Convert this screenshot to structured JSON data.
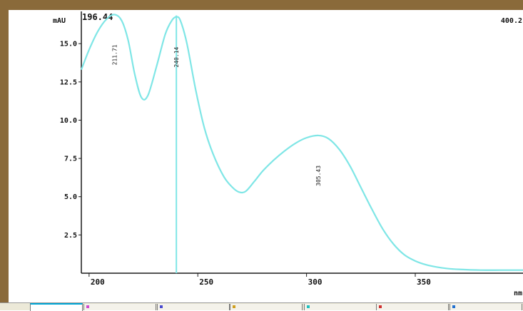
{
  "colors": {
    "trace": "#7fe6e6",
    "axis": "#1a1a1a",
    "frame": "#8a6a3a",
    "background": "#ffffff"
  },
  "header": {
    "unit_label": "mAU",
    "left_wavelength": "196.44",
    "right_wavelength": "400.2"
  },
  "chart_data": {
    "type": "line",
    "title": "",
    "xlabel": "nm",
    "ylabel": "mAU",
    "xlim": [
      196.44,
      400.2
    ],
    "ylim": [
      0,
      17.2
    ],
    "grid": false,
    "x_ticks": [
      200,
      250,
      300,
      350
    ],
    "x_tick_labels": [
      "200",
      "250",
      "300",
      "350"
    ],
    "y_ticks": [
      2.5,
      5.0,
      7.5,
      10.0,
      12.5,
      15.0
    ],
    "y_tick_labels": [
      "2.5",
      "5.0",
      "7.5",
      "10.0",
      "12.5",
      "15.0"
    ],
    "series": [
      {
        "x": [
          196.44,
          200,
          204,
          208,
          211.71,
          215,
          218,
          221,
          224,
          227,
          231,
          235,
          238,
          240.14,
          242,
          245,
          249,
          253,
          257,
          262,
          266,
          269,
          272,
          276,
          280,
          285,
          290,
          295,
          300,
          305.43,
          310,
          315,
          320,
          325,
          330,
          335,
          340,
          345,
          350,
          355,
          360,
          365,
          370,
          380,
          390,
          400.2
        ],
        "y": [
          13.3,
          14.6,
          15.8,
          16.6,
          16.9,
          16.5,
          15.2,
          13.0,
          11.5,
          11.6,
          13.5,
          15.6,
          16.5,
          16.75,
          16.5,
          15.0,
          12.0,
          9.5,
          7.8,
          6.3,
          5.6,
          5.3,
          5.35,
          6.0,
          6.7,
          7.4,
          8.0,
          8.5,
          8.85,
          9.0,
          8.8,
          8.1,
          7.0,
          5.6,
          4.2,
          2.9,
          1.9,
          1.2,
          0.8,
          0.55,
          0.4,
          0.3,
          0.25,
          0.2,
          0.2,
          0.2
        ]
      }
    ],
    "peak_labels": [
      {
        "x": 211.71,
        "y": 16.9,
        "text": "211.71"
      },
      {
        "x": 240.14,
        "y": 16.75,
        "text": "240.14"
      },
      {
        "x": 305.43,
        "y": 9.0,
        "text": "305.43"
      }
    ],
    "marker_x": 240.14
  },
  "tabs": [
    {
      "active": true,
      "color": ""
    },
    {
      "active": false,
      "color": "#d04ad0"
    },
    {
      "active": false,
      "color": "#4a4ad0"
    },
    {
      "active": false,
      "color": "#d0a020"
    },
    {
      "active": false,
      "color": "#20c0c0"
    },
    {
      "active": false,
      "color": "#d03030"
    },
    {
      "active": false,
      "color": "#2070d0"
    }
  ]
}
